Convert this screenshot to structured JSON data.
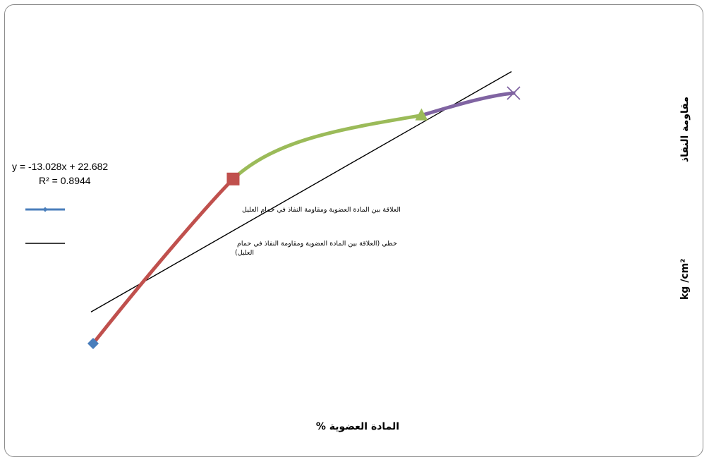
{
  "chart_data": {
    "type": "scatter",
    "xlabel": "المادة  العضوية  %",
    "ylabel_arabic": "مقاومة  النفاذ",
    "ylabel_unit": "kg /cm²",
    "grid": false,
    "legend_position": "left",
    "series": [
      {
        "name": "العلاقة بين المادة العضوية ومقاومة النفاذ في حمام العليل",
        "style": "smooth-line-with-markers",
        "points": [
          {
            "x": 0,
            "y": 0,
            "marker": "diamond",
            "color": "#4a7ebb"
          },
          {
            "x": 0.333,
            "y": 0.657,
            "marker": "square",
            "color": "#c0504d"
          },
          {
            "x": 0.781,
            "y": 0.911,
            "marker": "triangle",
            "color": "#9bbb59"
          },
          {
            "x": 1.0,
            "y": 1.0,
            "marker": "x",
            "color": "#8064a2"
          }
        ],
        "segment_colors": [
          "#c0504d",
          "#9bbb59",
          "#8064a2"
        ],
        "legend_color": "#4a7ebb"
      },
      {
        "name": "خطي (العلاقة بين المادة العضوية ومقاومة النفاذ في حمام العليل)",
        "style": "linear-trendline",
        "color": "#000000",
        "points": [
          {
            "x": -0.005,
            "y": 0.126
          },
          {
            "x": 0.995,
            "y": 1.086
          }
        ]
      }
    ],
    "annotations": {
      "equation": "y = -13.028x + 22.682",
      "r_squared": "R² = 0.8944"
    }
  }
}
